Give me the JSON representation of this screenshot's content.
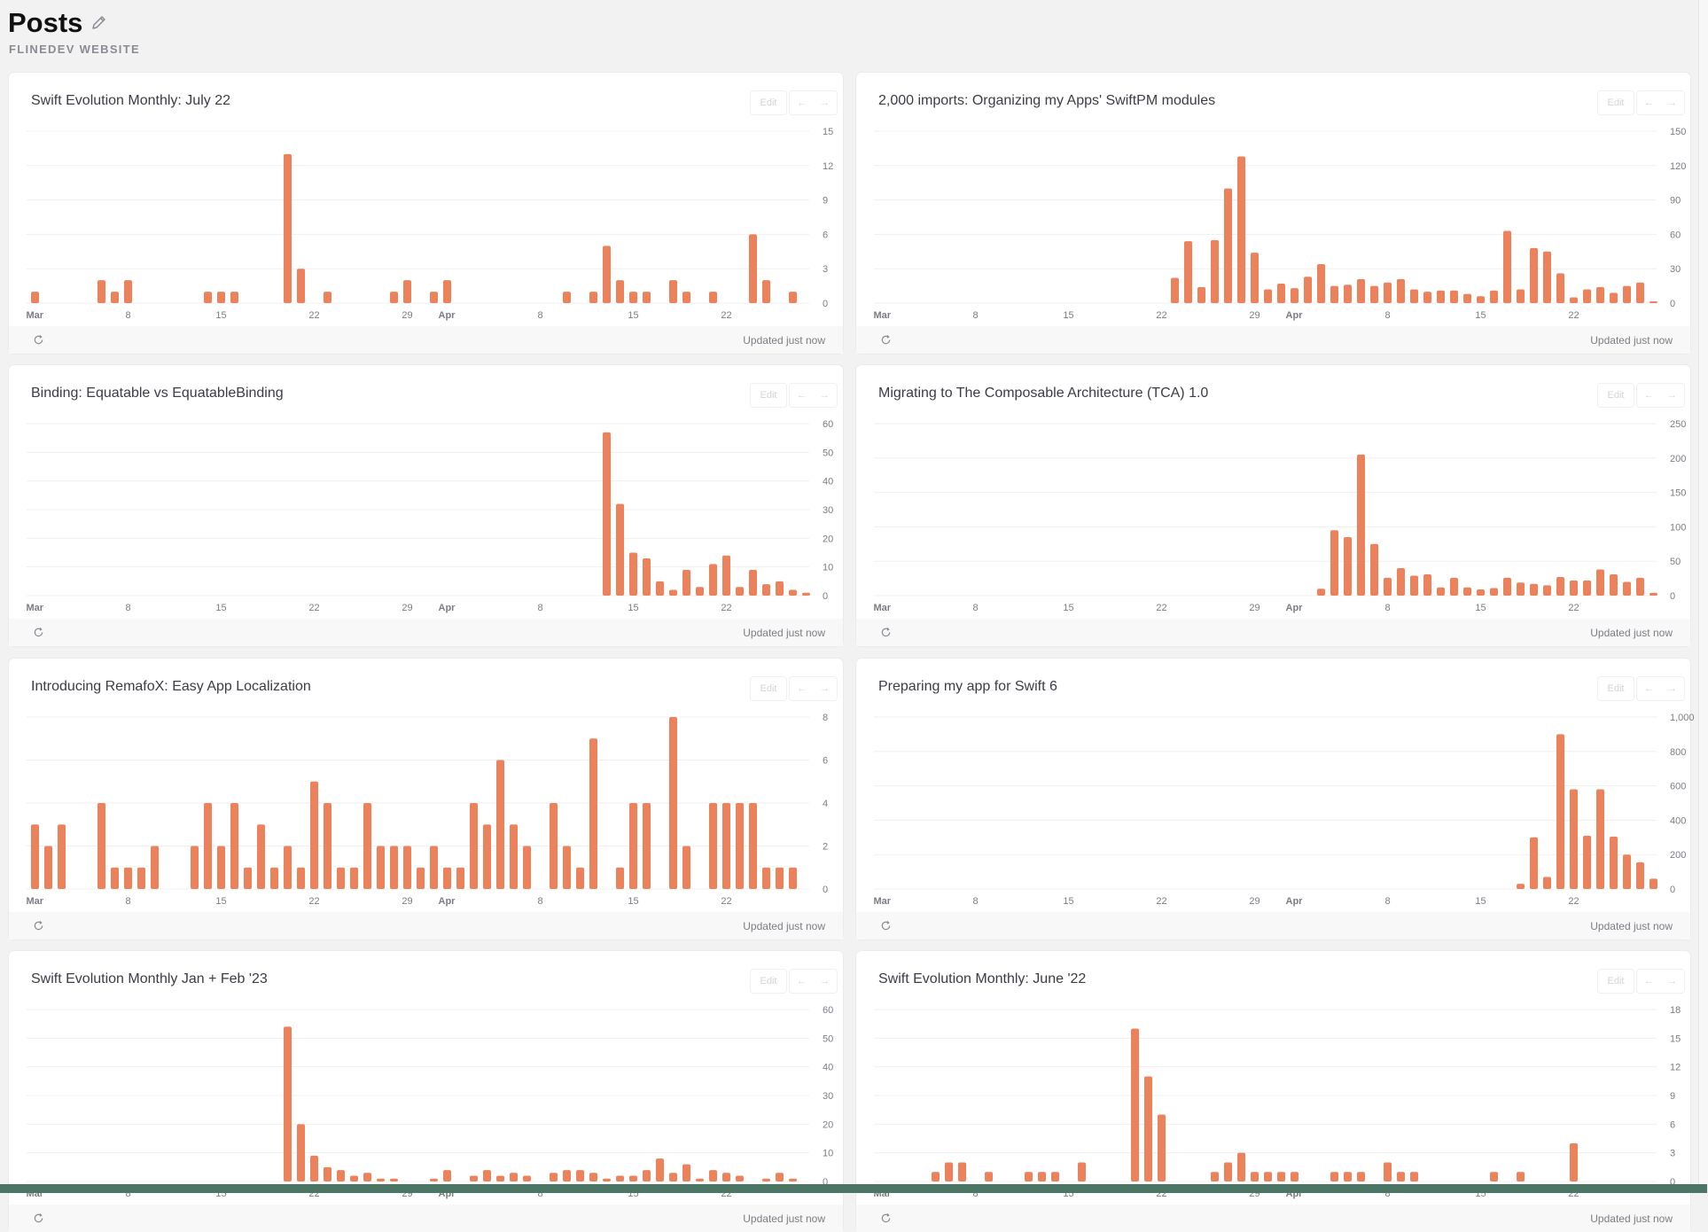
{
  "header": {
    "title": "Posts",
    "subtitle": "FLINEDEV WEBSITE",
    "edit_icon": "pencil-icon"
  },
  "card_ui": {
    "edit_label": "Edit",
    "prev_icon": "arrow-left-icon",
    "next_icon": "arrow-right-icon",
    "refresh_icon": "refresh-icon",
    "updated_label": "Updated just now"
  },
  "colors": {
    "bar": "#ec825b",
    "grid": "#efefef",
    "axis_text": "#7c7c84",
    "background": "#f2f2f2"
  },
  "x_axis": {
    "dates_from": "Mar 1",
    "dates_to": "Apr 28",
    "unit": "day",
    "ticks": [
      {
        "date": "Mar 1",
        "label": "Mar",
        "bold": true
      },
      {
        "date": "Mar 8",
        "label": "8"
      },
      {
        "date": "Mar 15",
        "label": "15"
      },
      {
        "date": "Mar 22",
        "label": "22"
      },
      {
        "date": "Mar 29",
        "label": "29"
      },
      {
        "date": "Apr 1",
        "label": "Apr",
        "bold": true
      },
      {
        "date": "Apr 8",
        "label": "8"
      },
      {
        "date": "Apr 15",
        "label": "15"
      },
      {
        "date": "Apr 22",
        "label": "22"
      }
    ]
  },
  "chart_data": [
    {
      "type": "bar",
      "title": "Swift Evolution Monthly: July 22",
      "ylim": [
        0,
        15
      ],
      "yticks": [
        "0",
        "3",
        "6",
        "9",
        "12",
        "15"
      ],
      "values": [
        1,
        0,
        0,
        0,
        0,
        2,
        1,
        2,
        0,
        0,
        0,
        0,
        0,
        1,
        1,
        1,
        0,
        0,
        0,
        13,
        3,
        0,
        1,
        0,
        0,
        0,
        0,
        1,
        2,
        0,
        1,
        2,
        0,
        0,
        0,
        0,
        0,
        0,
        0,
        0,
        1,
        0,
        1,
        5,
        2,
        1,
        1,
        0,
        2,
        1,
        0,
        1,
        0,
        0,
        6,
        2,
        0,
        1,
        0
      ]
    },
    {
      "type": "bar",
      "title": "2,000 imports: Organizing my Apps' SwiftPM modules",
      "ylim": [
        0,
        150
      ],
      "yticks": [
        "0",
        "30",
        "60",
        "90",
        "120",
        "150"
      ],
      "values": [
        0,
        0,
        0,
        0,
        0,
        0,
        0,
        0,
        0,
        0,
        0,
        0,
        0,
        0,
        0,
        0,
        0,
        0,
        0,
        0,
        0,
        0,
        22,
        54,
        14,
        55,
        100,
        128,
        44,
        12,
        17,
        13,
        23,
        34,
        15,
        16,
        21,
        15,
        18,
        21,
        12,
        10,
        11,
        11,
        8,
        6,
        11,
        63,
        12,
        48,
        45,
        26,
        5,
        12,
        14,
        9,
        15,
        18,
        1
      ]
    },
    {
      "type": "bar",
      "title": "Binding: Equatable vs EquatableBinding",
      "ylim": [
        0,
        60
      ],
      "yticks": [
        "0",
        "10",
        "20",
        "30",
        "40",
        "50",
        "60"
      ],
      "values": [
        0,
        0,
        0,
        0,
        0,
        0,
        0,
        0,
        0,
        0,
        0,
        0,
        0,
        0,
        0,
        0,
        0,
        0,
        0,
        0,
        0,
        0,
        0,
        0,
        0,
        0,
        0,
        0,
        0,
        0,
        0,
        0,
        0,
        0,
        0,
        0,
        0,
        0,
        0,
        0,
        0,
        0,
        0,
        57,
        32,
        15,
        13,
        5,
        2,
        9,
        3,
        11,
        14,
        3,
        9,
        4,
        5,
        2,
        1
      ]
    },
    {
      "type": "bar",
      "title": "Migrating to The Composable Architecture (TCA) 1.0",
      "ylim": [
        0,
        250
      ],
      "yticks": [
        "0",
        "50",
        "100",
        "150",
        "200",
        "250"
      ],
      "values": [
        0,
        0,
        0,
        0,
        0,
        0,
        0,
        0,
        0,
        0,
        0,
        0,
        0,
        0,
        0,
        0,
        0,
        0,
        0,
        0,
        0,
        0,
        0,
        0,
        0,
        0,
        0,
        0,
        0,
        0,
        0,
        0,
        0,
        10,
        95,
        85,
        205,
        75,
        26,
        40,
        29,
        31,
        12,
        26,
        12,
        9,
        11,
        26,
        19,
        17,
        15,
        27,
        22,
        22,
        38,
        31,
        20,
        26,
        4
      ]
    },
    {
      "type": "bar",
      "title": "Introducing RemafoX: Easy App Localization",
      "ylim": [
        0,
        8
      ],
      "yticks": [
        "0",
        "2",
        "4",
        "6",
        "8"
      ],
      "values": [
        3,
        2,
        3,
        0,
        0,
        4,
        1,
        1,
        1,
        2,
        0,
        0,
        2,
        4,
        2,
        4,
        1,
        3,
        1,
        2,
        1,
        5,
        4,
        1,
        1,
        4,
        2,
        2,
        2,
        1,
        2,
        1,
        1,
        4,
        3,
        6,
        3,
        2,
        0,
        4,
        2,
        1,
        7,
        0,
        1,
        4,
        4,
        0,
        8,
        2,
        0,
        4,
        4,
        4,
        4,
        1,
        1,
        1,
        0
      ]
    },
    {
      "type": "bar",
      "title": "Preparing my app for Swift 6",
      "ylim": [
        0,
        1000
      ],
      "yticks": [
        "0",
        "200",
        "400",
        "600",
        "800",
        "1,000"
      ],
      "values": [
        0,
        0,
        0,
        0,
        0,
        0,
        0,
        0,
        0,
        0,
        0,
        0,
        0,
        0,
        0,
        0,
        0,
        0,
        0,
        0,
        0,
        0,
        0,
        0,
        0,
        0,
        0,
        0,
        0,
        0,
        0,
        0,
        0,
        0,
        0,
        0,
        0,
        0,
        0,
        0,
        0,
        0,
        0,
        0,
        0,
        0,
        0,
        0,
        30,
        300,
        70,
        900,
        580,
        310,
        580,
        305,
        200,
        155,
        60
      ]
    },
    {
      "type": "bar",
      "title": "Swift Evolution Monthly Jan + Feb '23",
      "ylim": [
        0,
        60
      ],
      "yticks": [
        "0",
        "10",
        "20",
        "30",
        "40",
        "50",
        "60"
      ],
      "values": [
        0,
        0,
        0,
        0,
        0,
        0,
        0,
        0,
        0,
        0,
        0,
        0,
        0,
        0,
        0,
        0,
        0,
        0,
        0,
        54,
        20,
        9,
        5,
        4,
        2,
        3,
        1,
        1,
        0,
        0,
        1,
        4,
        0,
        2,
        4,
        2,
        3,
        2,
        0,
        3,
        4,
        4,
        3,
        1,
        2,
        2,
        4,
        8,
        3,
        6,
        1,
        4,
        3,
        2,
        0,
        1,
        3,
        1,
        0
      ]
    },
    {
      "type": "bar",
      "title": "Swift Evolution Monthly: June '22",
      "ylim": [
        0,
        18
      ],
      "yticks": [
        "0",
        "3",
        "6",
        "9",
        "12",
        "15",
        "18"
      ],
      "values": [
        0,
        0,
        0,
        0,
        1,
        2,
        2,
        0,
        1,
        0,
        0,
        1,
        1,
        1,
        0,
        2,
        0,
        0,
        0,
        16,
        11,
        7,
        0,
        0,
        0,
        1,
        2,
        3,
        1,
        1,
        1,
        1,
        0,
        0,
        1,
        1,
        1,
        0,
        2,
        1,
        1,
        0,
        0,
        0,
        0,
        0,
        1,
        0,
        1,
        0,
        0,
        0,
        4,
        0,
        0,
        0,
        0,
        0,
        0
      ]
    }
  ]
}
